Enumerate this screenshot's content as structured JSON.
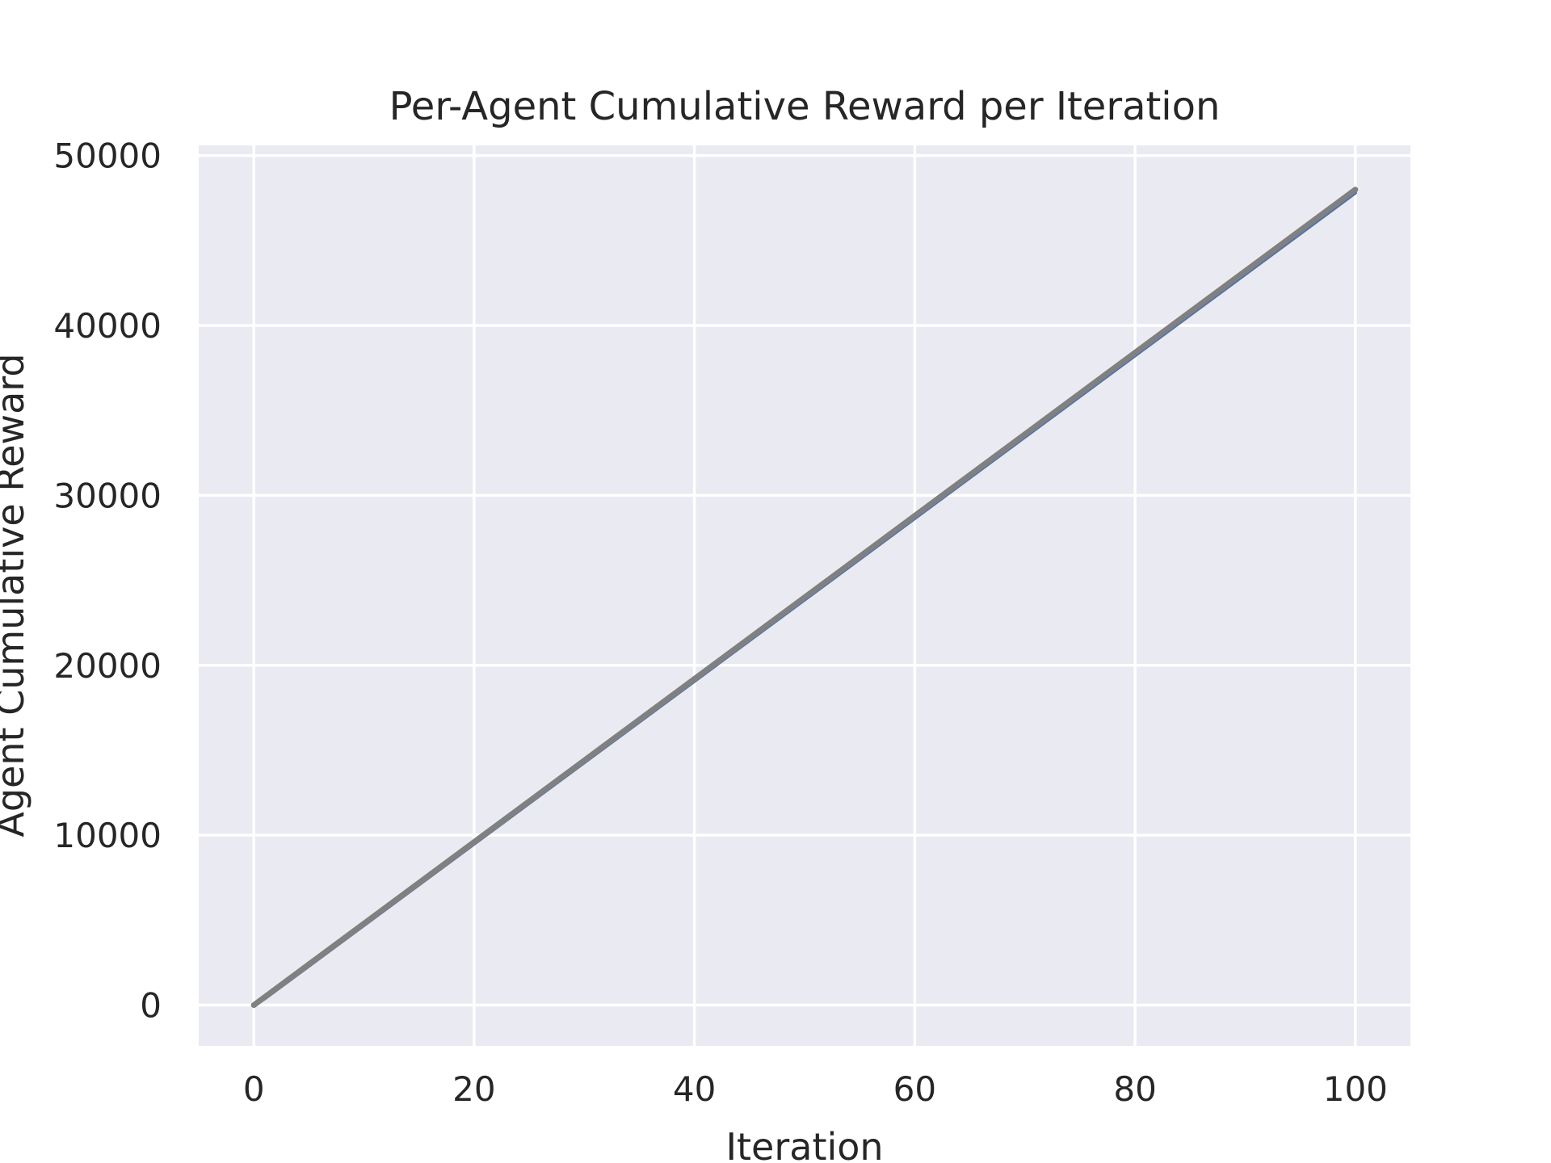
{
  "chart_data": {
    "type": "line",
    "title": "Per-Agent Cumulative Reward per Iteration",
    "xlabel": "Iteration",
    "ylabel": "Agent Cumulative Reward",
    "xlim": [
      -5,
      105
    ],
    "ylim": [
      -2400,
      50600
    ],
    "xticks": [
      0,
      20,
      40,
      60,
      80,
      100
    ],
    "yticks": [
      0,
      10000,
      20000,
      30000,
      40000,
      50000
    ],
    "grid": true,
    "background_color": "#eaeaf2",
    "grid_color": "#ffffff",
    "series": [
      {
        "color": "#4c72b0",
        "x": [
          0,
          1,
          100
        ],
        "y": [
          0,
          380,
          47800
        ]
      },
      {
        "color": "#808080",
        "x": [
          0,
          100
        ],
        "y": [
          0,
          48000
        ]
      }
    ]
  }
}
